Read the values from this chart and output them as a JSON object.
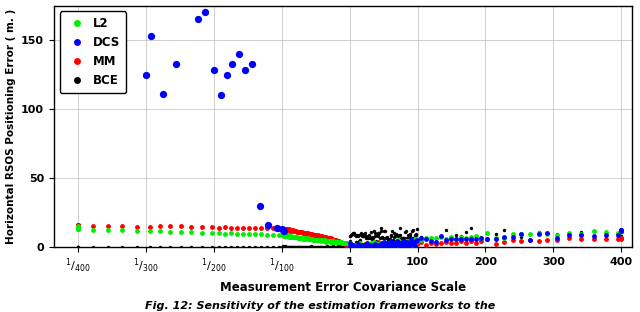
{
  "xlabel": "Measurement Error Covariance Scale",
  "ylabel": "Horizontal RSOS Positioning Error ( m. )",
  "ylim": [
    0,
    175
  ],
  "yticks": [
    0,
    50,
    100,
    150
  ],
  "colors": {
    "L2": "#00ee00",
    "DCS": "#0000ff",
    "MM": "#ff0000",
    "BCE": "#000000"
  },
  "bg_color": "#ffffff",
  "grid_color": "#bbbbbb",
  "caption": "Fig. 12: Sensitivity of the estimation frameworks to the",
  "tick_scales": [
    0.0025,
    0.003333,
    0.005,
    0.01,
    1.0,
    100.0,
    200.0,
    300.0,
    400.0
  ],
  "tick_labels": [
    "$^1/_{400}$",
    "$^1/_{300}$",
    "$^1/_{200}$",
    "$^1/_{100}$",
    "1",
    "100",
    "200",
    "300",
    "400"
  ],
  "ms": 3.5
}
